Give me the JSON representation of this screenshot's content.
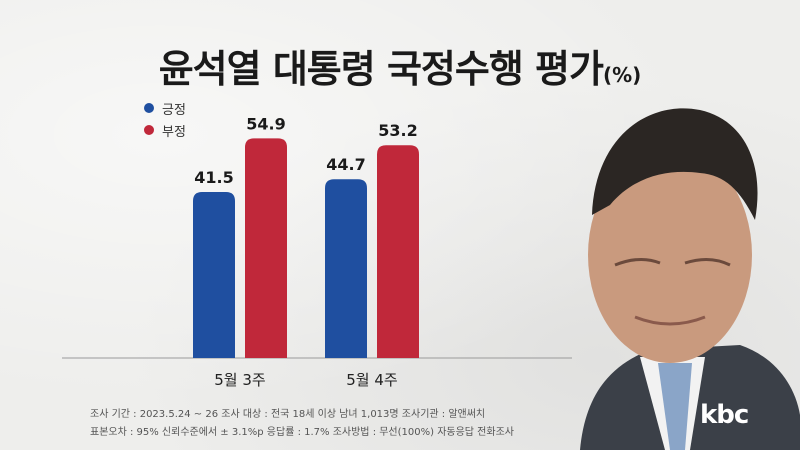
{
  "title": "윤석열 대통령 국정수행 평가",
  "title_unit": "(%)",
  "chart_data": {
    "type": "bar",
    "title": "윤석열 대통령 국정수행 평가",
    "unit": "(%)",
    "categories": [
      "5월 3주",
      "5월 4주"
    ],
    "series": [
      {
        "name": "긍정",
        "color": "#1f4fa0",
        "values": [
          41.5,
          44.7
        ]
      },
      {
        "name": "부정",
        "color": "#c0283a",
        "values": [
          54.9,
          53.2
        ]
      }
    ],
    "ylim": [
      0,
      60
    ],
    "grid": false,
    "legend": "top-left"
  },
  "footnotes": {
    "line1": "조사 기간 : 2023.5.24 ~ 26   조사 대상 : 전국 18세 이상 남녀 1,013명   조사기관 : 알앤써치",
    "line2": "표본오차 : 95% 신뢰수준에서 ± 3.1%p   응답률 : 1.7%   조사방법 : 무선(100%) 자동응답 전화조사"
  },
  "logo": "kbc"
}
